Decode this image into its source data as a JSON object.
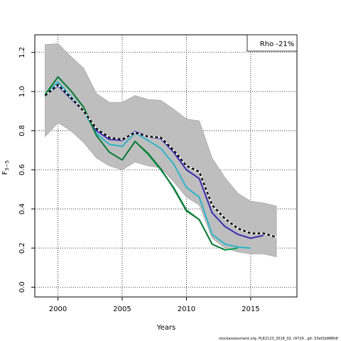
{
  "chart_data": {
    "type": "line",
    "title": "",
    "xlabel": "Years",
    "ylabel_main": "F",
    "ylabel_sub": "3−5",
    "xlim": [
      1998.2,
      2018.6
    ],
    "ylim": [
      -0.05,
      1.29
    ],
    "xticks": [
      2000,
      2005,
      2010,
      2015
    ],
    "yticks": [
      "0.0",
      "0.2",
      "0.4",
      "0.6",
      "0.8",
      "1.0",
      "1.2"
    ],
    "ytick_values": [
      0.0,
      0.2,
      0.4,
      0.6,
      0.8,
      1.0,
      1.2
    ],
    "grid": "dotted",
    "legend": {
      "position": "top-right",
      "text": "Rho -21%"
    },
    "band": {
      "color": "#bebebe",
      "x": [
        1999,
        2000,
        2001,
        2002,
        2003,
        2004,
        2005,
        2006,
        2007,
        2008,
        2009,
        2010,
        2011,
        2012,
        2013,
        2014,
        2015,
        2016,
        2017
      ],
      "upper": [
        1.24,
        1.245,
        1.18,
        1.12,
        0.99,
        0.945,
        0.945,
        0.98,
        0.96,
        0.955,
        0.91,
        0.86,
        0.85,
        0.66,
        0.56,
        0.48,
        0.44,
        0.43,
        0.415
      ],
      "lower": [
        0.77,
        0.84,
        0.8,
        0.74,
        0.66,
        0.62,
        0.6,
        0.64,
        0.62,
        0.61,
        0.54,
        0.46,
        0.42,
        0.25,
        0.2,
        0.18,
        0.17,
        0.17,
        0.155
      ]
    },
    "series": [
      {
        "color": "#000000",
        "dashed": true,
        "x": [
          1999,
          2000,
          2001,
          2002,
          2003,
          2004,
          2005,
          2006,
          2007,
          2008,
          2009,
          2010,
          2011,
          2012,
          2013,
          2014,
          2015,
          2016,
          2017
        ],
        "values": [
          0.98,
          1.035,
          0.97,
          0.9,
          0.81,
          0.765,
          0.755,
          0.79,
          0.77,
          0.765,
          0.7,
          0.62,
          0.59,
          0.42,
          0.35,
          0.3,
          0.275,
          0.275,
          0.255
        ]
      },
      {
        "color": "#3d2bb1",
        "dashed": false,
        "x": [
          1999,
          2000,
          2001,
          2002,
          2003,
          2004,
          2005,
          2006,
          2007,
          2008,
          2009,
          2010,
          2011,
          2012,
          2013,
          2014,
          2015,
          2016
        ],
        "values": [
          0.98,
          1.03,
          0.965,
          0.9,
          0.8,
          0.755,
          0.75,
          0.795,
          0.77,
          0.76,
          0.69,
          0.6,
          0.555,
          0.38,
          0.31,
          0.27,
          0.25,
          0.265
        ]
      },
      {
        "color": "#2cb3c8",
        "dashed": false,
        "x": [
          1999,
          2000,
          2001,
          2002,
          2003,
          2004,
          2005,
          2006,
          2007,
          2008,
          2009,
          2010,
          2011,
          2012,
          2013,
          2014,
          2015
        ],
        "values": [
          0.975,
          1.05,
          0.975,
          0.9,
          0.785,
          0.73,
          0.72,
          0.79,
          0.75,
          0.71,
          0.63,
          0.51,
          0.46,
          0.27,
          0.22,
          0.205,
          0.2
        ]
      },
      {
        "color": "#11a04e",
        "dashed": false,
        "x": [
          1999,
          2000,
          2001,
          2002,
          2003,
          2004,
          2005,
          2006,
          2007,
          2008,
          2009,
          2010,
          2011,
          2012,
          2013,
          2014
        ],
        "values": [
          0.985,
          1.075,
          1.005,
          0.92,
          0.775,
          0.69,
          0.65,
          0.745,
          0.68,
          0.6,
          0.51,
          0.395,
          0.345,
          0.22,
          0.19,
          0.2
        ]
      },
      {
        "color": "#0f7a3a",
        "dashed": false,
        "x": [
          1999,
          2000,
          2001,
          2002,
          2003,
          2004,
          2005,
          2006,
          2007,
          2008,
          2009,
          2010,
          2011,
          2012,
          2013
        ],
        "values": [
          0.98,
          1.075,
          1.005,
          0.92,
          0.775,
          0.69,
          0.65,
          0.745,
          0.685,
          0.605,
          0.505,
          0.39,
          0.345,
          0.22,
          0.19
        ]
      }
    ],
    "footnote": "stockassessment.org, PLE2123_2018_02, r9729 , git: 53ef2b988fdf"
  }
}
